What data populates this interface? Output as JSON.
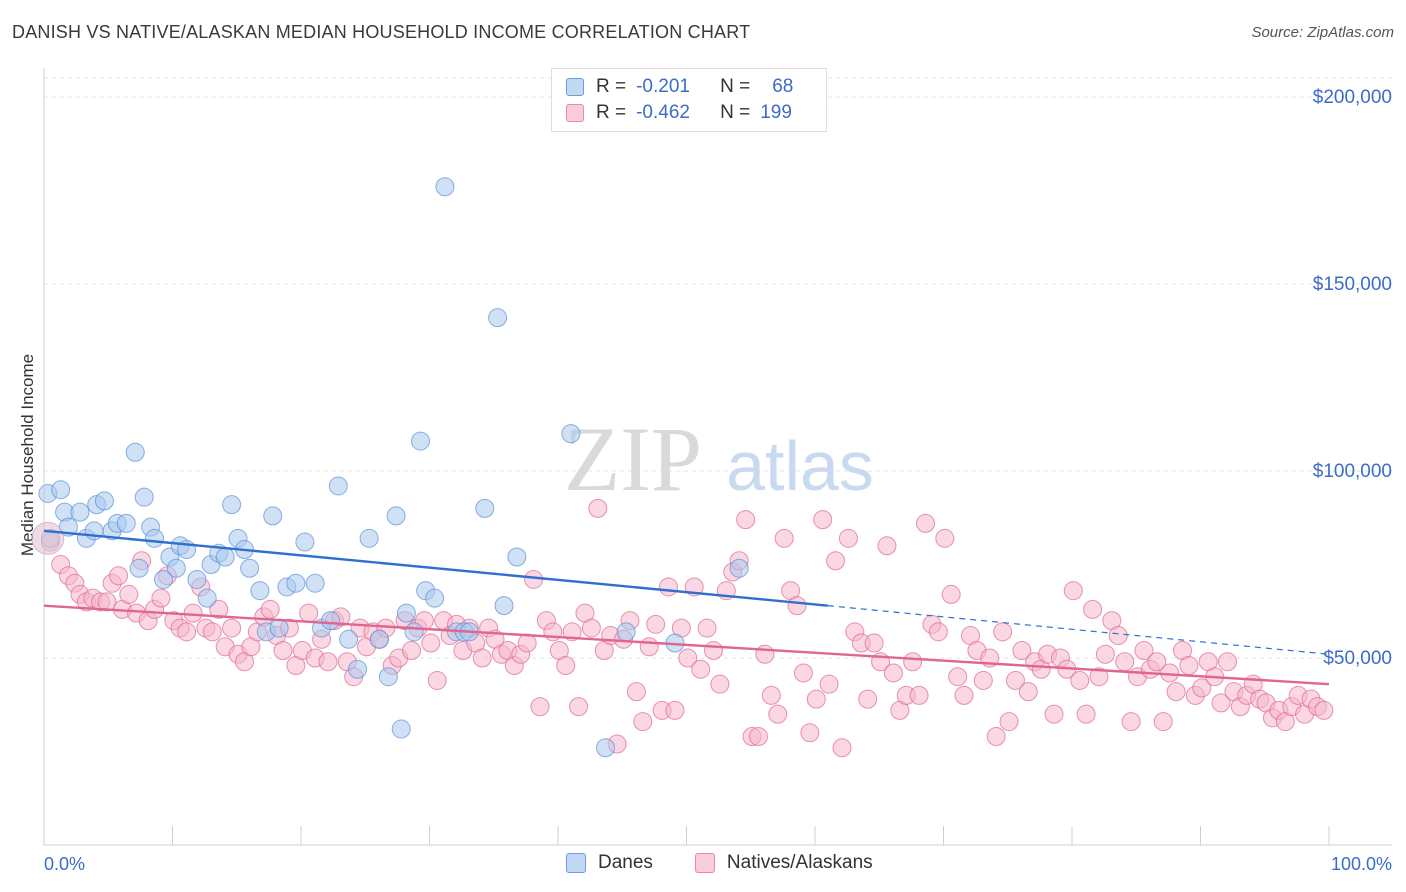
{
  "header": {
    "title": "DANISH VS NATIVE/ALASKAN MEDIAN HOUSEHOLD INCOME CORRELATION CHART",
    "source": "Source: ZipAtlas.com"
  },
  "watermark": {
    "zip": "ZIP",
    "atlas": "atlas"
  },
  "legend": {
    "rows": [
      {
        "r_label": "R =",
        "r_value": "-0.201",
        "n_label": "N =",
        "n_value": "68",
        "color": "#a9c8ee"
      },
      {
        "r_label": "R =",
        "r_value": "-0.462",
        "n_label": "N =",
        "n_value": "199",
        "color": "#f5b7cb"
      }
    ]
  },
  "bottom_legend": {
    "items": [
      {
        "label": "Danes",
        "color": "#a9c8ee"
      },
      {
        "label": "Natives/Alaskans",
        "color": "#f5b7cb"
      }
    ]
  },
  "chart_data": {
    "type": "scatter",
    "title": "DANISH VS NATIVE/ALASKAN MEDIAN HOUSEHOLD INCOME CORRELATION CHART",
    "ylabel": "Median Household Income",
    "xlabel": "",
    "x_tick_labels": [
      "0.0%",
      "100.0%"
    ],
    "y_tick_labels": [
      "$50,000",
      "$100,000",
      "$150,000",
      "$200,000"
    ],
    "y_ticks": [
      50000,
      100000,
      150000,
      200000
    ],
    "xlim": [
      0,
      100
    ],
    "ylim": [
      0,
      205000
    ],
    "grid": true,
    "legend_position": "top-center",
    "series": [
      {
        "name": "Danes",
        "color": "#5b8fd6",
        "fill": "#a9c8ee",
        "r": -0.201,
        "n": 68,
        "trend": {
          "x0": 0,
          "y0": 84000,
          "x1": 61,
          "y1": 64000,
          "dash_to_x": 100,
          "dash_to_y": 51000
        },
        "points": [
          [
            0.3,
            94000
          ],
          [
            1.3,
            95000
          ],
          [
            1.6,
            89000
          ],
          [
            1.9,
            85000
          ],
          [
            2.8,
            89000
          ],
          [
            3.3,
            82000
          ],
          [
            3.9,
            84000
          ],
          [
            4.1,
            91000
          ],
          [
            4.7,
            92000
          ],
          [
            5.3,
            84000
          ],
          [
            5.7,
            86000
          ],
          [
            6.4,
            86000
          ],
          [
            7.1,
            105000
          ],
          [
            7.4,
            74000
          ],
          [
            7.8,
            93000
          ],
          [
            8.3,
            85000
          ],
          [
            8.6,
            82000
          ],
          [
            9.3,
            71000
          ],
          [
            9.8,
            77000
          ],
          [
            10.3,
            74000
          ],
          [
            10.6,
            80000
          ],
          [
            11.1,
            79000
          ],
          [
            11.9,
            71000
          ],
          [
            12.7,
            66000
          ],
          [
            13.0,
            75000
          ],
          [
            13.6,
            78000
          ],
          [
            14.1,
            77000
          ],
          [
            14.6,
            91000
          ],
          [
            15.1,
            82000
          ],
          [
            15.6,
            79000
          ],
          [
            16.0,
            74000
          ],
          [
            16.8,
            68000
          ],
          [
            17.3,
            57000
          ],
          [
            17.8,
            88000
          ],
          [
            18.3,
            58000
          ],
          [
            18.9,
            69000
          ],
          [
            19.6,
            70000
          ],
          [
            20.3,
            81000
          ],
          [
            21.1,
            70000
          ],
          [
            21.6,
            58000
          ],
          [
            22.3,
            60000
          ],
          [
            22.9,
            96000
          ],
          [
            23.7,
            55000
          ],
          [
            24.4,
            47000
          ],
          [
            25.3,
            82000
          ],
          [
            26.1,
            55000
          ],
          [
            26.8,
            45000
          ],
          [
            27.4,
            88000
          ],
          [
            27.8,
            31000
          ],
          [
            28.2,
            62000
          ],
          [
            28.8,
            57000
          ],
          [
            29.3,
            108000
          ],
          [
            29.7,
            68000
          ],
          [
            30.4,
            66000
          ],
          [
            31.2,
            176000
          ],
          [
            32.1,
            57000
          ],
          [
            32.7,
            57000
          ],
          [
            34.3,
            90000
          ],
          [
            35.3,
            141000
          ],
          [
            35.8,
            64000
          ],
          [
            36.8,
            77000
          ],
          [
            41.0,
            110000
          ],
          [
            43.7,
            26000
          ],
          [
            45.3,
            57000
          ],
          [
            49.1,
            54000
          ],
          [
            54.1,
            74000
          ],
          [
            0.5,
            82000
          ],
          [
            33.1,
            57000
          ]
        ]
      },
      {
        "name": "Natives/Alaskans",
        "color": "#e0668f",
        "fill": "#f5b7cb",
        "r": -0.462,
        "n": 199,
        "trend": {
          "x0": 0,
          "y0": 64000,
          "x1": 100,
          "y1": 43000
        },
        "points": [
          [
            0.5,
            81000
          ],
          [
            1.3,
            75000
          ],
          [
            1.9,
            72000
          ],
          [
            2.4,
            70000
          ],
          [
            2.8,
            67000
          ],
          [
            3.3,
            65000
          ],
          [
            3.8,
            66000
          ],
          [
            4.4,
            65000
          ],
          [
            4.9,
            65000
          ],
          [
            5.3,
            70000
          ],
          [
            5.8,
            72000
          ],
          [
            6.1,
            63000
          ],
          [
            6.6,
            67000
          ],
          [
            7.2,
            62000
          ],
          [
            7.6,
            76000
          ],
          [
            8.1,
            60000
          ],
          [
            8.6,
            63000
          ],
          [
            9.1,
            66000
          ],
          [
            9.6,
            72000
          ],
          [
            10.1,
            60000
          ],
          [
            10.6,
            58000
          ],
          [
            11.1,
            57000
          ],
          [
            11.6,
            62000
          ],
          [
            12.2,
            69000
          ],
          [
            12.6,
            58000
          ],
          [
            13.1,
            57000
          ],
          [
            13.6,
            63000
          ],
          [
            14.1,
            53000
          ],
          [
            14.6,
            58000
          ],
          [
            15.1,
            51000
          ],
          [
            15.6,
            49000
          ],
          [
            16.1,
            53000
          ],
          [
            16.6,
            57000
          ],
          [
            17.1,
            61000
          ],
          [
            17.6,
            63000
          ],
          [
            18.1,
            56000
          ],
          [
            18.6,
            52000
          ],
          [
            19.1,
            58000
          ],
          [
            19.6,
            48000
          ],
          [
            20.1,
            52000
          ],
          [
            20.6,
            62000
          ],
          [
            21.1,
            50000
          ],
          [
            21.6,
            55000
          ],
          [
            22.1,
            49000
          ],
          [
            22.6,
            60000
          ],
          [
            23.1,
            61000
          ],
          [
            23.6,
            49000
          ],
          [
            24.1,
            45000
          ],
          [
            24.6,
            58000
          ],
          [
            25.1,
            53000
          ],
          [
            25.6,
            57000
          ],
          [
            26.1,
            55000
          ],
          [
            26.6,
            58000
          ],
          [
            27.1,
            48000
          ],
          [
            27.6,
            50000
          ],
          [
            28.1,
            60000
          ],
          [
            28.6,
            52000
          ],
          [
            29.1,
            58000
          ],
          [
            29.6,
            60000
          ],
          [
            30.1,
            54000
          ],
          [
            30.6,
            44000
          ],
          [
            31.1,
            60000
          ],
          [
            31.6,
            56000
          ],
          [
            32.1,
            59000
          ],
          [
            32.6,
            52000
          ],
          [
            33.1,
            58000
          ],
          [
            33.6,
            54000
          ],
          [
            34.1,
            50000
          ],
          [
            34.6,
            58000
          ],
          [
            35.1,
            55000
          ],
          [
            35.6,
            51000
          ],
          [
            36.1,
            52000
          ],
          [
            36.6,
            48000
          ],
          [
            37.1,
            51000
          ],
          [
            37.6,
            54000
          ],
          [
            38.1,
            71000
          ],
          [
            38.6,
            37000
          ],
          [
            39.1,
            60000
          ],
          [
            39.6,
            57000
          ],
          [
            40.1,
            52000
          ],
          [
            40.6,
            48000
          ],
          [
            41.1,
            57000
          ],
          [
            41.6,
            37000
          ],
          [
            42.1,
            62000
          ],
          [
            42.6,
            58000
          ],
          [
            43.1,
            90000
          ],
          [
            43.6,
            52000
          ],
          [
            44.1,
            56000
          ],
          [
            44.6,
            27000
          ],
          [
            45.1,
            55000
          ],
          [
            45.6,
            60000
          ],
          [
            46.1,
            41000
          ],
          [
            46.6,
            33000
          ],
          [
            47.1,
            53000
          ],
          [
            47.6,
            59000
          ],
          [
            48.1,
            36000
          ],
          [
            48.6,
            69000
          ],
          [
            49.1,
            36000
          ],
          [
            49.6,
            58000
          ],
          [
            50.1,
            50000
          ],
          [
            50.6,
            69000
          ],
          [
            51.1,
            47000
          ],
          [
            51.6,
            58000
          ],
          [
            52.1,
            52000
          ],
          [
            52.6,
            43000
          ],
          [
            53.1,
            68000
          ],
          [
            53.6,
            73000
          ],
          [
            54.1,
            76000
          ],
          [
            54.6,
            87000
          ],
          [
            55.1,
            29000
          ],
          [
            55.6,
            29000
          ],
          [
            56.1,
            51000
          ],
          [
            56.6,
            40000
          ],
          [
            57.1,
            35000
          ],
          [
            57.6,
            82000
          ],
          [
            58.1,
            68000
          ],
          [
            58.6,
            64000
          ],
          [
            59.1,
            46000
          ],
          [
            59.6,
            30000
          ],
          [
            60.1,
            39000
          ],
          [
            60.6,
            87000
          ],
          [
            61.1,
            43000
          ],
          [
            61.6,
            76000
          ],
          [
            62.1,
            26000
          ],
          [
            62.6,
            82000
          ],
          [
            63.1,
            57000
          ],
          [
            63.6,
            54000
          ],
          [
            64.1,
            39000
          ],
          [
            64.6,
            54000
          ],
          [
            65.1,
            49000
          ],
          [
            65.6,
            80000
          ],
          [
            66.1,
            46000
          ],
          [
            66.6,
            36000
          ],
          [
            67.1,
            40000
          ],
          [
            67.6,
            49000
          ],
          [
            68.1,
            40000
          ],
          [
            68.6,
            86000
          ],
          [
            69.1,
            59000
          ],
          [
            69.6,
            57000
          ],
          [
            70.1,
            82000
          ],
          [
            70.6,
            67000
          ],
          [
            71.1,
            45000
          ],
          [
            71.6,
            40000
          ],
          [
            72.1,
            56000
          ],
          [
            72.6,
            52000
          ],
          [
            73.1,
            44000
          ],
          [
            73.6,
            50000
          ],
          [
            74.1,
            29000
          ],
          [
            74.6,
            57000
          ],
          [
            75.1,
            33000
          ],
          [
            75.6,
            44000
          ],
          [
            76.1,
            52000
          ],
          [
            76.6,
            41000
          ],
          [
            77.1,
            49000
          ],
          [
            77.6,
            47000
          ],
          [
            78.1,
            51000
          ],
          [
            78.6,
            35000
          ],
          [
            79.1,
            50000
          ],
          [
            79.6,
            47000
          ],
          [
            80.1,
            68000
          ],
          [
            80.6,
            44000
          ],
          [
            81.1,
            35000
          ],
          [
            81.6,
            63000
          ],
          [
            82.1,
            45000
          ],
          [
            82.6,
            51000
          ],
          [
            83.1,
            60000
          ],
          [
            83.6,
            56000
          ],
          [
            84.1,
            49000
          ],
          [
            84.6,
            33000
          ],
          [
            85.1,
            45000
          ],
          [
            85.6,
            52000
          ],
          [
            86.1,
            47000
          ],
          [
            86.6,
            49000
          ],
          [
            87.1,
            33000
          ],
          [
            87.6,
            46000
          ],
          [
            88.1,
            41000
          ],
          [
            88.6,
            52000
          ],
          [
            89.1,
            48000
          ],
          [
            89.6,
            40000
          ],
          [
            90.1,
            42000
          ],
          [
            90.6,
            49000
          ],
          [
            91.1,
            45000
          ],
          [
            91.6,
            38000
          ],
          [
            92.1,
            49000
          ],
          [
            92.6,
            41000
          ],
          [
            93.1,
            37000
          ],
          [
            93.6,
            40000
          ],
          [
            94.1,
            43000
          ],
          [
            94.6,
            39000
          ],
          [
            95.1,
            38000
          ],
          [
            95.6,
            34000
          ],
          [
            96.1,
            36000
          ],
          [
            96.6,
            33000
          ],
          [
            97.1,
            37000
          ],
          [
            97.6,
            40000
          ],
          [
            98.1,
            35000
          ],
          [
            98.6,
            39000
          ],
          [
            99.1,
            37000
          ],
          [
            99.6,
            36000
          ]
        ]
      }
    ]
  }
}
